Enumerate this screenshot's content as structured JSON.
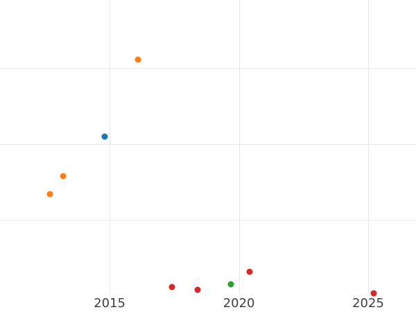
{
  "chart_data": {
    "type": "scatter",
    "title": "",
    "xlabel": "",
    "ylabel": "",
    "grid": true,
    "legend": false,
    "xlim": [
      2010.76,
      2026.85
    ],
    "ylim": [
      0.02,
      3.89
    ],
    "x_ticks": [
      {
        "value": 2015,
        "label": "2015"
      },
      {
        "value": 2020,
        "label": "2020"
      },
      {
        "value": 2025,
        "label": "2025"
      }
    ],
    "y_gridlines": [
      1,
      2,
      3
    ],
    "marker_diameter_px": 9,
    "series": [
      {
        "name": "blue",
        "color": "#1f77b4",
        "points": [
          {
            "x": 2014.8,
            "y": 2.1
          }
        ]
      },
      {
        "name": "orange",
        "color": "#ff7f0e",
        "points": [
          {
            "x": 2012.7,
            "y": 1.34
          },
          {
            "x": 2013.2,
            "y": 1.58
          },
          {
            "x": 2016.1,
            "y": 3.11
          }
        ]
      },
      {
        "name": "green",
        "color": "#2ca02c",
        "points": [
          {
            "x": 2019.7,
            "y": 0.16
          }
        ]
      },
      {
        "name": "red",
        "color": "#d62728",
        "points": [
          {
            "x": 2017.4,
            "y": 0.12
          },
          {
            "x": 2018.4,
            "y": 0.08
          },
          {
            "x": 2020.4,
            "y": 0.32
          },
          {
            "x": 2025.2,
            "y": 0.04
          }
        ]
      }
    ],
    "colors": {
      "background": "#ffffff",
      "gridline": "#e9e9e9",
      "tick_label": "#3f3f3f"
    }
  }
}
